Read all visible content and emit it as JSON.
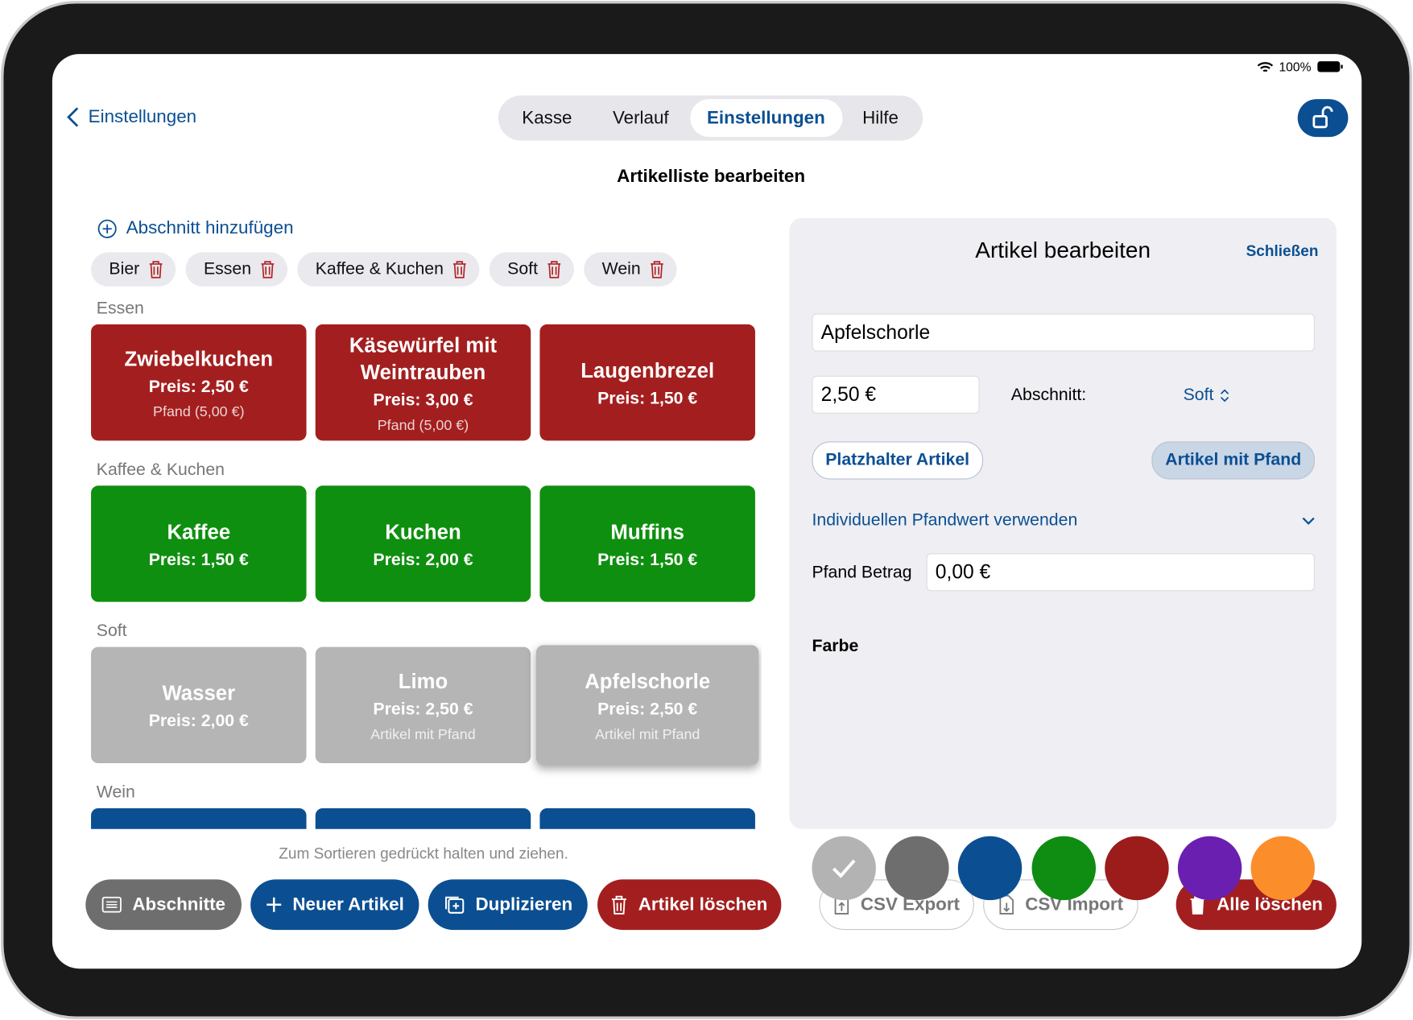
{
  "status_bar": {
    "battery": "100%"
  },
  "nav": {
    "back": "Einstellungen",
    "tabs": [
      "Kasse",
      "Verlauf",
      "Einstellungen",
      "Hilfe"
    ],
    "title": "Artikelliste bearbeiten"
  },
  "sections_bar": {
    "add": "Abschnitt hinzufügen",
    "chips": [
      "Bier",
      "Essen",
      "Kaffee & Kuchen",
      "Soft",
      "Wein"
    ]
  },
  "sections": [
    {
      "name": "Essen",
      "color": "#a31f1f",
      "items": [
        {
          "name": "Zwiebelkuchen",
          "price": "Preis: 2,50 €",
          "note": "Pfand (5,00 €)"
        },
        {
          "name": "Käsewürfel mit Weintrauben",
          "price": "Preis: 3,00 €",
          "note": "Pfand (5,00 €)"
        },
        {
          "name": "Laugenbrezel",
          "price": "Preis: 1,50 €"
        }
      ]
    },
    {
      "name": "Kaffee & Kuchen",
      "color": "#0f8f0f",
      "items": [
        {
          "name": "Kaffee",
          "price": "Preis: 1,50 €"
        },
        {
          "name": "Kuchen",
          "price": "Preis: 2,00 €"
        },
        {
          "name": "Muffins",
          "price": "Preis: 1,50 €"
        }
      ]
    },
    {
      "name": "Soft",
      "color": "#b5b5b5",
      "items": [
        {
          "name": "Wasser",
          "price": "Preis: 2,00 €"
        },
        {
          "name": "Limo",
          "price": "Preis: 2,50 €",
          "note": "Artikel mit Pfand"
        },
        {
          "name": "Apfelschorle",
          "price": "Preis: 2,50 €",
          "note": "Artikel mit Pfand",
          "selected": true
        }
      ]
    },
    {
      "name": "Wein",
      "color": "#0b4f92",
      "items": [
        {},
        {},
        {}
      ]
    }
  ],
  "hint": "Zum Sortieren gedrückt halten und ziehen.",
  "toolbar": [
    "Abschnitte",
    "Neuer Artikel",
    "Duplizieren",
    "Artikel löschen",
    "CSV Export",
    "CSV Import",
    "Alle löschen"
  ],
  "panel": {
    "title": "Artikel bearbeiten",
    "close": "Schließen",
    "name": "Apfelschorle",
    "price": "2,50 €",
    "section_label": "Abschnitt:",
    "section_value": "Soft",
    "toggles": [
      "Platzhalter Artikel",
      "Artikel mit Pfand"
    ],
    "custom_deposit": "Individuellen Pfandwert verwenden",
    "deposit_label": "Pfand Betrag",
    "deposit_value": "0,00 €",
    "color_label": "Farbe",
    "colors": [
      "#b3b3b3",
      "#6e6e6e",
      "#0b4f92",
      "#0f8c12",
      "#9c1c1c",
      "#6a1fb0",
      "#fb8e2b"
    ],
    "selected_color": 0
  }
}
